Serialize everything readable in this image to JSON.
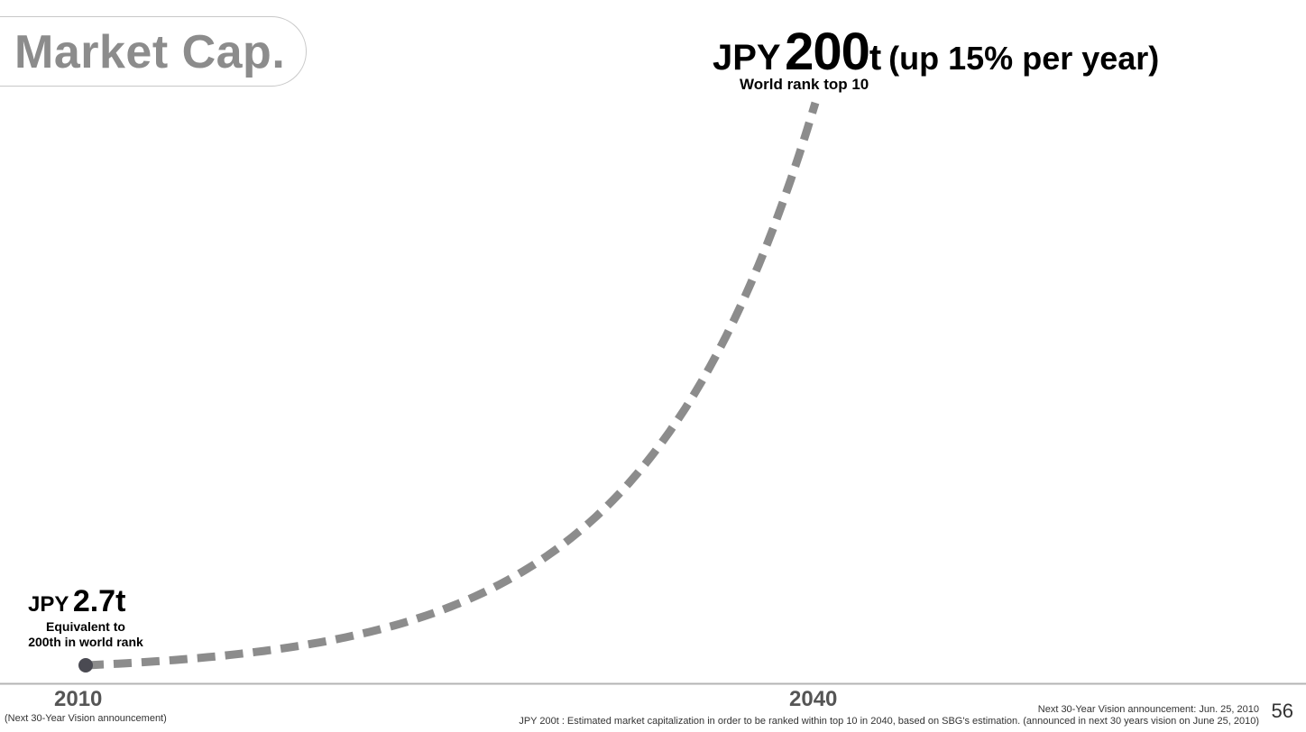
{
  "slide": {
    "title": "Market Cap.",
    "page_number": "56"
  },
  "labels": {
    "start_currency": "JPY",
    "start_value": "2.7t",
    "start_note_line1": "Equivalent to",
    "start_note_line2": "200th in world rank",
    "end_currency": "JPY",
    "end_value": "200",
    "end_unit": "t",
    "end_growth": "(up 15% per year)",
    "end_note": "World rank top 10"
  },
  "footer": {
    "start_tick_note": "(Next 30-Year Vision announcement)",
    "announcement": "Next 30-Year Vision announcement: Jun. 25, 2010",
    "definition": "JPY 200t :  Estimated market capitalization in order to be ranked within top 10 in 2040, based on SBG's estimation. (announced in next 30 years vision on June 25, 2010)"
  },
  "chart_data": {
    "type": "line",
    "series": [
      {
        "x": [
          2010,
          2040
        ],
        "y": [
          2.7,
          200
        ],
        "style": "dashed",
        "growth_rate": 0.15
      }
    ],
    "x_tick_labels": [
      "2010",
      "2040"
    ],
    "xlim": [
      2010,
      2040
    ],
    "ylim": [
      0,
      200
    ],
    "grid": false,
    "legend": "none",
    "colors": {
      "line": "#8c8c8c",
      "marker": "#4a4a52",
      "axis": "#b4b4b4",
      "title": "#8c8c8c"
    }
  }
}
